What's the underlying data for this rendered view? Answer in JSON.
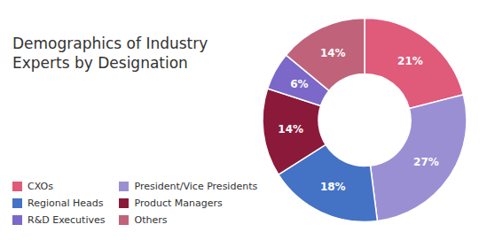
{
  "chart_data": {
    "type": "pie",
    "title": "Demographics of Industry\nExperts by Designation",
    "categories": [
      "CXOs",
      "President/Vice Presidents",
      "Regional Heads",
      "Product Managers",
      "R&D Executives",
      "Others"
    ],
    "values": [
      21,
      27,
      18,
      14,
      6,
      14
    ],
    "value_labels": [
      "21%",
      "27%",
      "18%",
      "14%",
      "6%",
      "14%"
    ],
    "colors": [
      "#E05A7A",
      "#9B8FD4",
      "#4472C4",
      "#8B1A3A",
      "#7B68C8",
      "#C0637A"
    ],
    "data_labels": true,
    "legend": "bottom"
  }
}
